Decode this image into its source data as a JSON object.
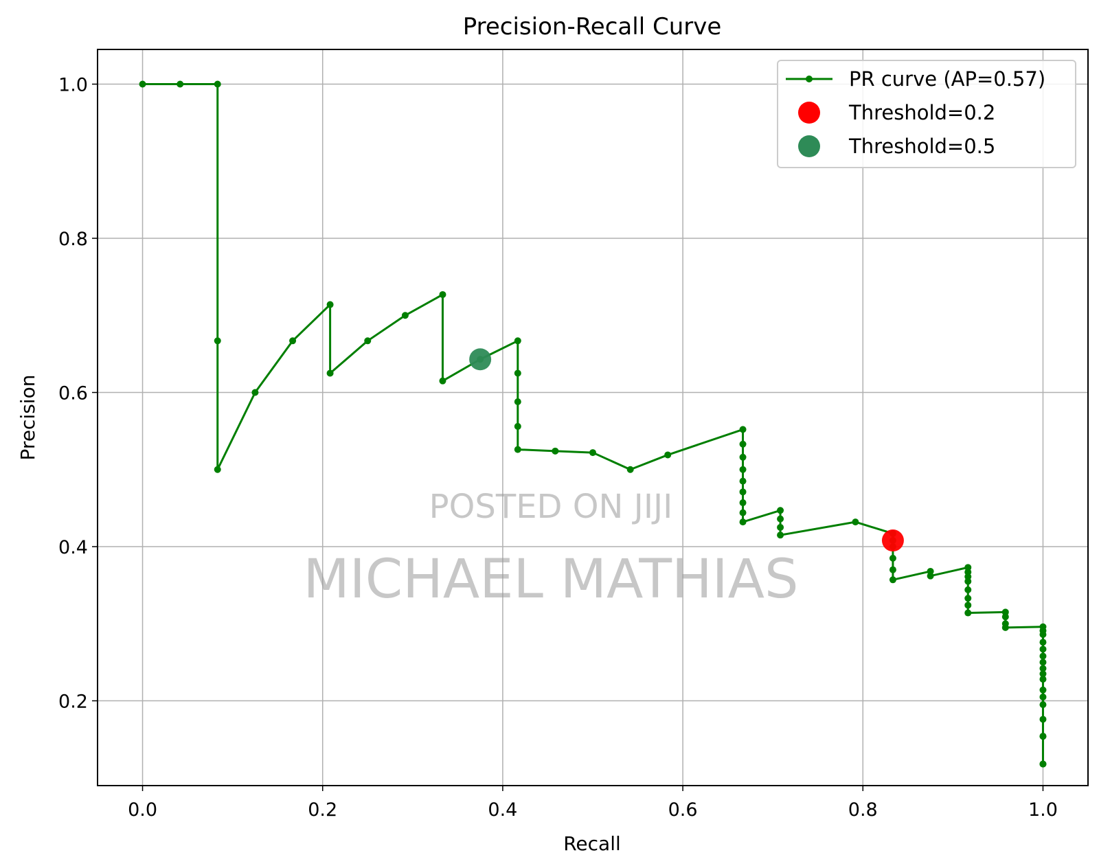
{
  "chart_data": {
    "type": "line",
    "title": "Precision-Recall Curve",
    "xlabel": "Recall",
    "ylabel": "Precision",
    "xlim": [
      -0.05,
      1.05
    ],
    "ylim": [
      0.09,
      1.045
    ],
    "xticks": [
      0.0,
      0.2,
      0.4,
      0.6,
      0.8,
      1.0
    ],
    "yticks": [
      0.2,
      0.4,
      0.6,
      0.8,
      1.0
    ],
    "xtick_labels": [
      "0.0",
      "0.2",
      "0.4",
      "0.6",
      "0.8",
      "1.0"
    ],
    "ytick_labels": [
      "0.2",
      "0.4",
      "0.6",
      "0.8",
      "1.0"
    ],
    "grid": true,
    "legend_position": "top-right",
    "series": [
      {
        "name": "PR curve (AP=0.57)",
        "color": "#007f00",
        "marker": "circle",
        "x": [
          0.0,
          0.0417,
          0.0833,
          0.0833,
          0.0833,
          0.125,
          0.1667,
          0.2083,
          0.2083,
          0.25,
          0.2917,
          0.3333,
          0.3333,
          0.375,
          0.4167,
          0.4167,
          0.4167,
          0.4167,
          0.4167,
          0.4583,
          0.5,
          0.5417,
          0.5833,
          0.6667,
          0.6667,
          0.6667,
          0.6667,
          0.6667,
          0.6667,
          0.6667,
          0.6667,
          0.6667,
          0.7083,
          0.7083,
          0.7083,
          0.7083,
          0.7917,
          0.8333,
          0.8333,
          0.8333,
          0.8333,
          0.8333,
          0.8333,
          0.875,
          0.875,
          0.9167,
          0.9167,
          0.9167,
          0.9167,
          0.9167,
          0.9167,
          0.9167,
          0.9167,
          0.9583,
          0.9583,
          0.9583,
          0.9583,
          1.0,
          1.0,
          1.0,
          1.0,
          1.0,
          1.0,
          1.0,
          1.0,
          1.0,
          1.0,
          1.0,
          1.0,
          1.0,
          1.0,
          1.0,
          1.0,
          1.0,
          1.0
        ],
        "y": [
          1.0,
          1.0,
          1.0,
          0.667,
          0.5,
          0.6,
          0.667,
          0.714,
          0.625,
          0.667,
          0.7,
          0.727,
          0.615,
          0.643,
          0.667,
          0.625,
          0.588,
          0.556,
          0.526,
          0.524,
          0.522,
          0.5,
          0.519,
          0.552,
          0.533,
          0.516,
          0.5,
          0.485,
          0.471,
          0.457,
          0.444,
          0.432,
          0.447,
          0.436,
          0.425,
          0.415,
          0.432,
          0.417,
          0.408,
          0.4,
          0.385,
          0.37,
          0.357,
          0.368,
          0.362,
          0.373,
          0.367,
          0.361,
          0.355,
          0.344,
          0.333,
          0.324,
          0.314,
          0.315,
          0.309,
          0.3,
          0.295,
          0.296,
          0.291,
          0.286,
          0.276,
          0.267,
          0.258,
          0.25,
          0.242,
          0.235,
          0.228,
          0.214,
          0.205,
          0.195,
          0.176,
          0.154,
          0.154,
          0.118,
          0.118
        ]
      }
    ],
    "highlights": [
      {
        "name": "Threshold=0.2",
        "x": 0.8333,
        "y": 0.408,
        "color": "#ff0000"
      },
      {
        "name": "Threshold=0.5",
        "x": 0.375,
        "y": 0.643,
        "color": "#2e8b57"
      }
    ]
  },
  "watermark": {
    "line1": "POSTED ON JIJI",
    "line2": "MICHAEL MATHIAS"
  }
}
